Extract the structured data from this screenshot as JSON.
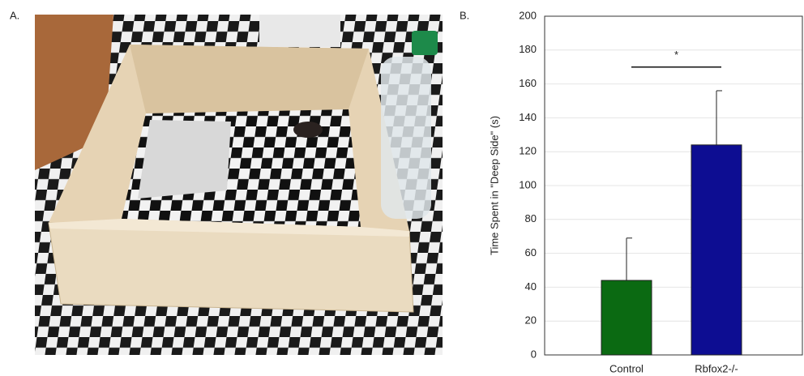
{
  "panel_labels": [
    "A.",
    "B."
  ],
  "chart_data": {
    "type": "bar",
    "y_label": "Time Spent in \"Deep Side\" (s)",
    "categories": [
      "Control",
      "Rbfox2-/-"
    ],
    "values": [
      44,
      124
    ],
    "errors": [
      25,
      32
    ],
    "colors": [
      "#0b6a12",
      "#0d0d92"
    ],
    "ylim": [
      0,
      200
    ],
    "yticks": [
      0,
      20,
      40,
      60,
      80,
      100,
      120,
      140,
      160,
      180,
      200
    ],
    "grid": true,
    "annotations": [
      {
        "text": "*",
        "between": [
          0,
          1
        ],
        "y": 170
      }
    ]
  }
}
